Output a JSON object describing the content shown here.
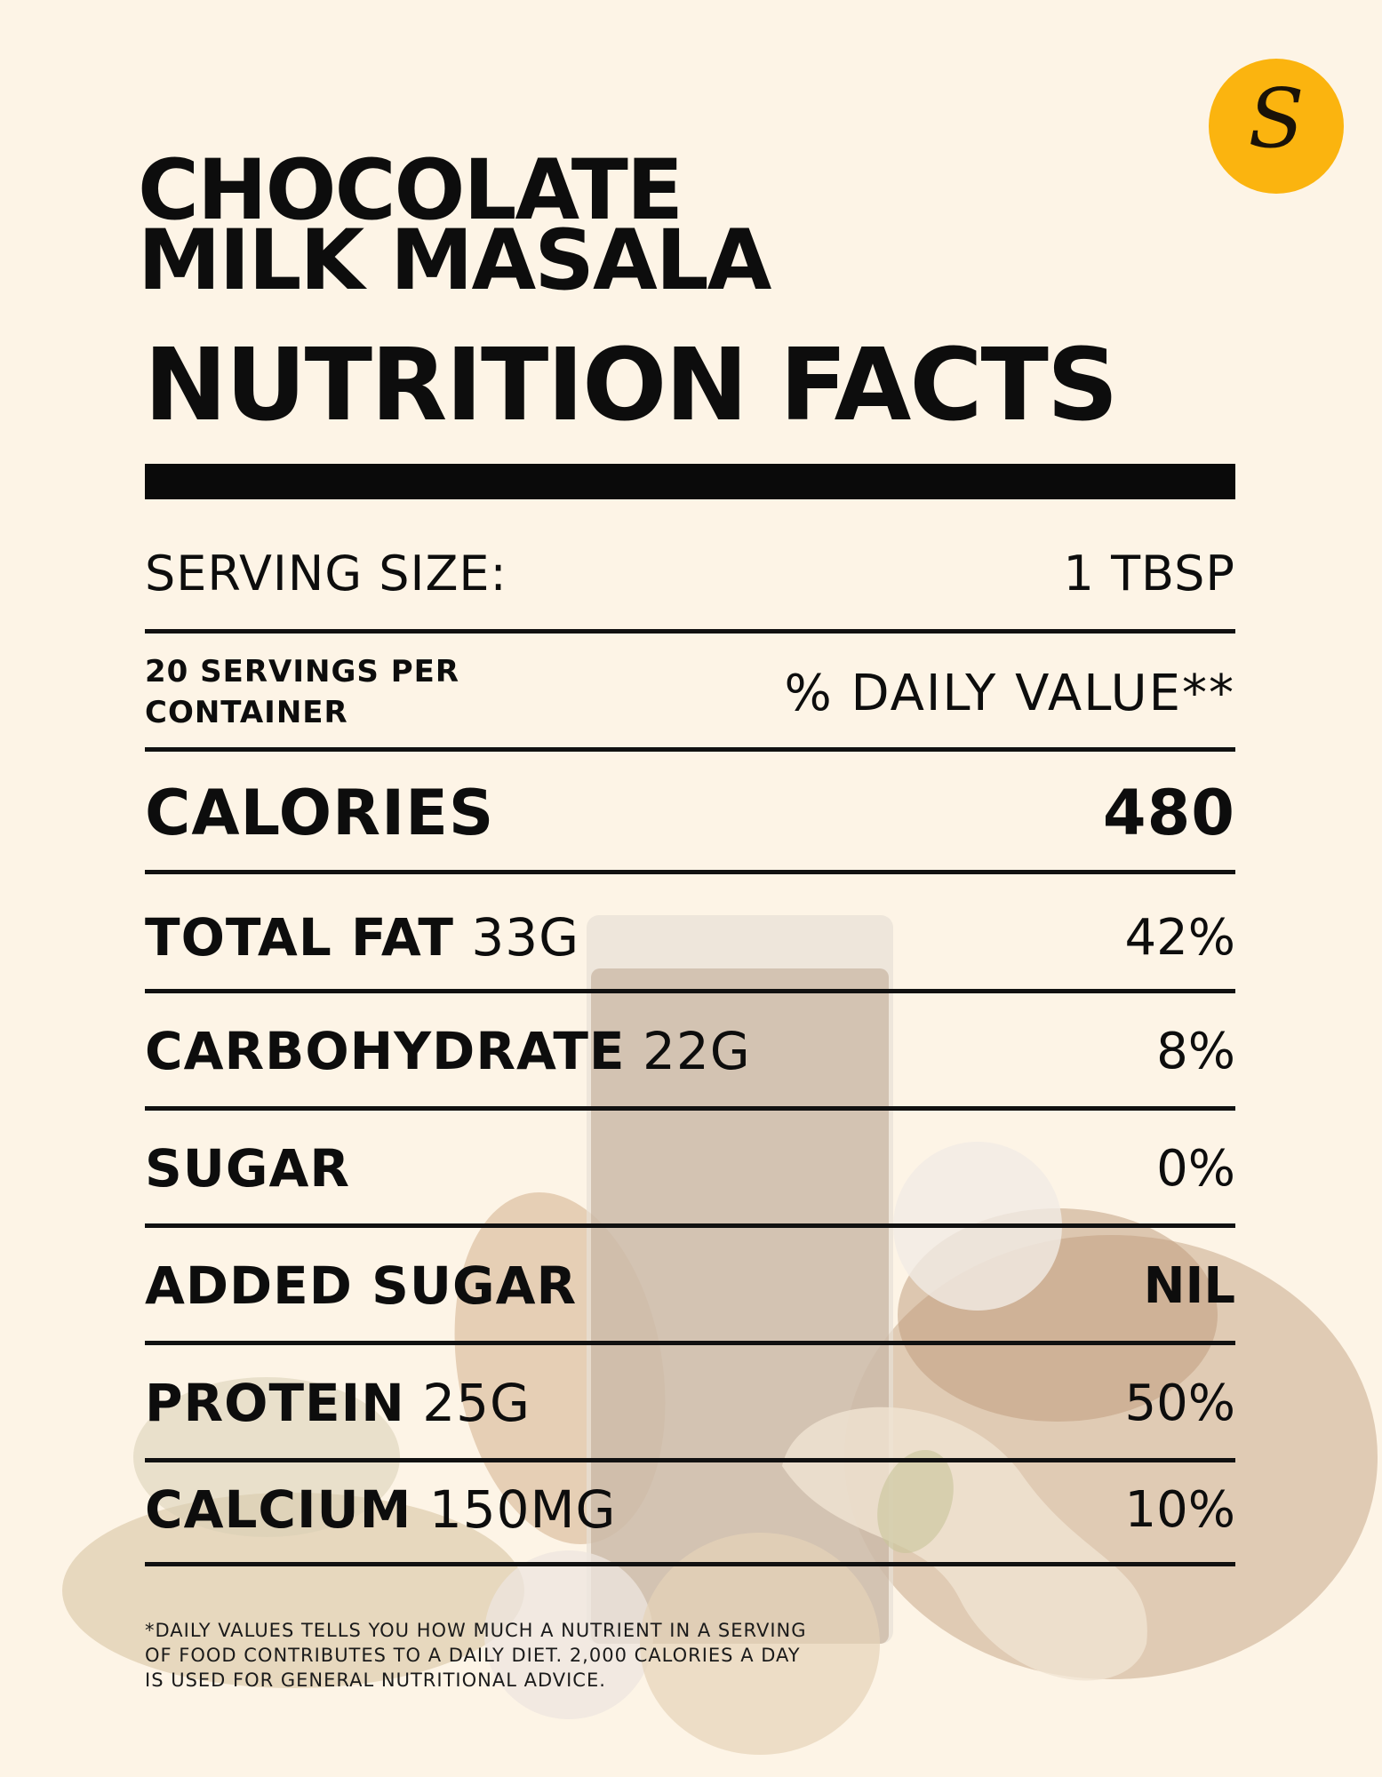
{
  "product": {
    "title_line1": "CHOCOLATE",
    "title_line2": "MILK MASALA",
    "heading": "NUTRITION FACTS"
  },
  "logo": {
    "letter": "S",
    "color": "#fbb40f"
  },
  "serving": {
    "label": "SERVING SIZE:",
    "value": "1 TBSP",
    "servings_per_container": "20 SERVINGS PER CONTAINER",
    "daily_value_header": "% DAILY VALUE**"
  },
  "calories": {
    "label": "CALORIES",
    "value": "480"
  },
  "nutrients": [
    {
      "name": "TOTAL FAT",
      "amount": "33G",
      "dv": "42%"
    },
    {
      "name": "CARBOHYDRATE",
      "amount": "22G",
      "dv": "8%"
    },
    {
      "name": "SUGAR",
      "amount": "",
      "dv": "0%"
    },
    {
      "name": "ADDED SUGAR",
      "amount": "",
      "dv": "NIL"
    },
    {
      "name": "PROTEIN",
      "amount": "25G",
      "dv": "50%"
    },
    {
      "name": "CALCIUM",
      "amount": "150MG",
      "dv": "10%"
    }
  ],
  "footnote": "*DAILY VALUES TELLS YOU HOW MUCH A NUTRIENT IN A SERVING OF FOOD CONTRIBUTES TO A DAILY DIET. 2,000 CALORIES A DAY IS USED FOR GENERAL NUTRITIONAL ADVICE.",
  "colors": {
    "background": "#fdf4e6",
    "text": "#0d0d0d",
    "accent": "#fbb40f"
  }
}
